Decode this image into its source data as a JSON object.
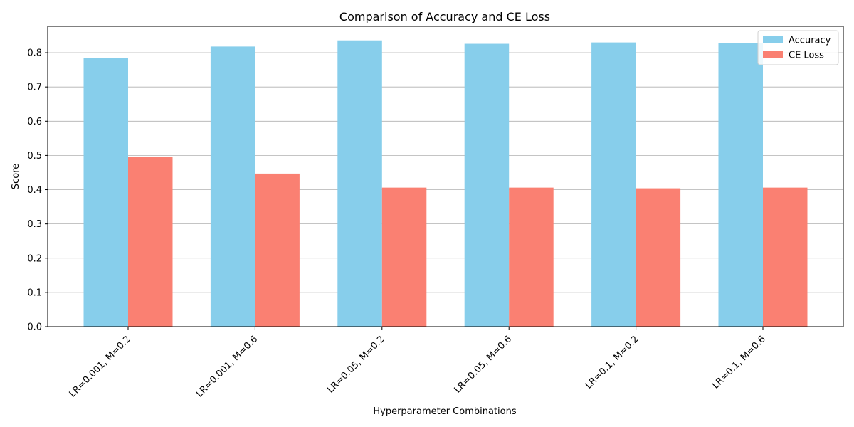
{
  "chart_data": {
    "type": "bar",
    "title": "Comparison of Accuracy and CE Loss",
    "xlabel": "Hyperparameter Combinations",
    "ylabel": "Score",
    "categories": [
      "LR=0.001, M=0.2",
      "LR=0.001, M=0.6",
      "LR=0.05, M=0.2",
      "LR=0.05, M=0.6",
      "LR=0.1, M=0.2",
      "LR=0.1, M=0.6"
    ],
    "series": [
      {
        "name": "Accuracy",
        "color": "#87ceeb",
        "values": [
          0.784,
          0.818,
          0.836,
          0.826,
          0.83,
          0.828
        ]
      },
      {
        "name": "CE Loss",
        "color": "#fa8072",
        "values": [
          0.495,
          0.447,
          0.406,
          0.406,
          0.404,
          0.406
        ]
      }
    ],
    "ylim": [
      0,
      0.877
    ],
    "yticks": [
      0.0,
      0.1,
      0.2,
      0.3,
      0.4,
      0.5,
      0.6,
      0.7,
      0.8
    ],
    "ytick_labels": [
      "0.0",
      "0.1",
      "0.2",
      "0.3",
      "0.4",
      "0.5",
      "0.6",
      "0.7",
      "0.8"
    ],
    "grid": "y",
    "legend": "top-right"
  }
}
